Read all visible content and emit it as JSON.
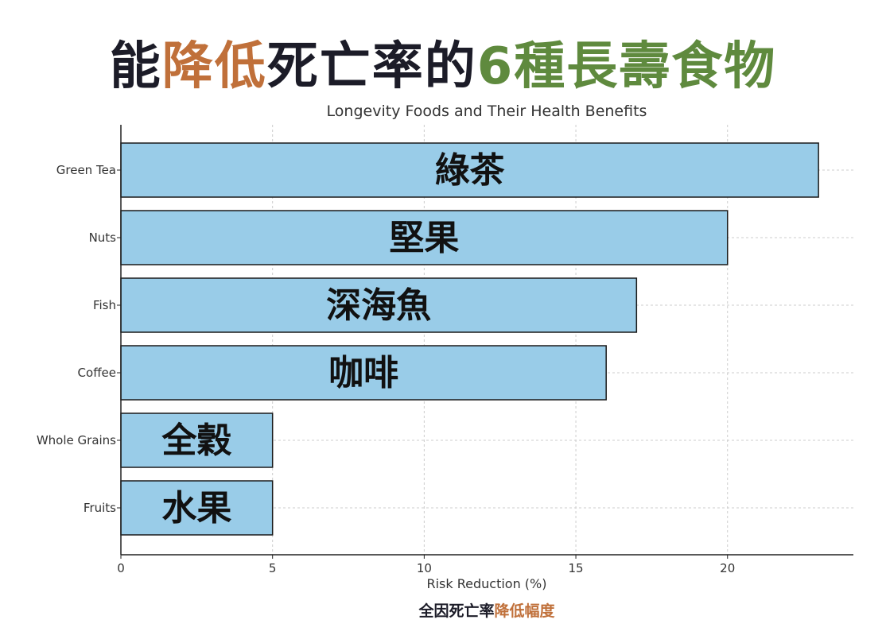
{
  "headline": {
    "parts": [
      {
        "text": "能",
        "color": "#1c1c28"
      },
      {
        "text": "降低",
        "color": "#c0703a"
      },
      {
        "text": "死亡率的",
        "color": "#1c1c28"
      },
      {
        "text": "6種長壽食物",
        "color": "#5f8a3e"
      }
    ]
  },
  "footnote": {
    "part1": "全因死亡率",
    "part2": "降低幅度"
  },
  "chart_data": {
    "type": "bar",
    "orientation": "horizontal",
    "title": "Longevity Foods and Their Health Benefits",
    "xlabel": "Risk Reduction (%)",
    "ylabel": "",
    "categories": [
      "Green Tea",
      "Nuts",
      "Fish",
      "Coffee",
      "Whole Grains",
      "Fruits"
    ],
    "bar_labels": [
      "綠茶",
      "堅果",
      "深海魚",
      "咖啡",
      "全穀",
      "水果"
    ],
    "values": [
      23,
      20,
      17,
      16,
      5,
      5
    ],
    "xlim": [
      0,
      24.15
    ],
    "xticks": [
      0,
      5,
      10,
      15,
      20
    ],
    "grid": true,
    "bar_color": "#99cce8",
    "bar_edge_color": "#1a1a1a"
  }
}
